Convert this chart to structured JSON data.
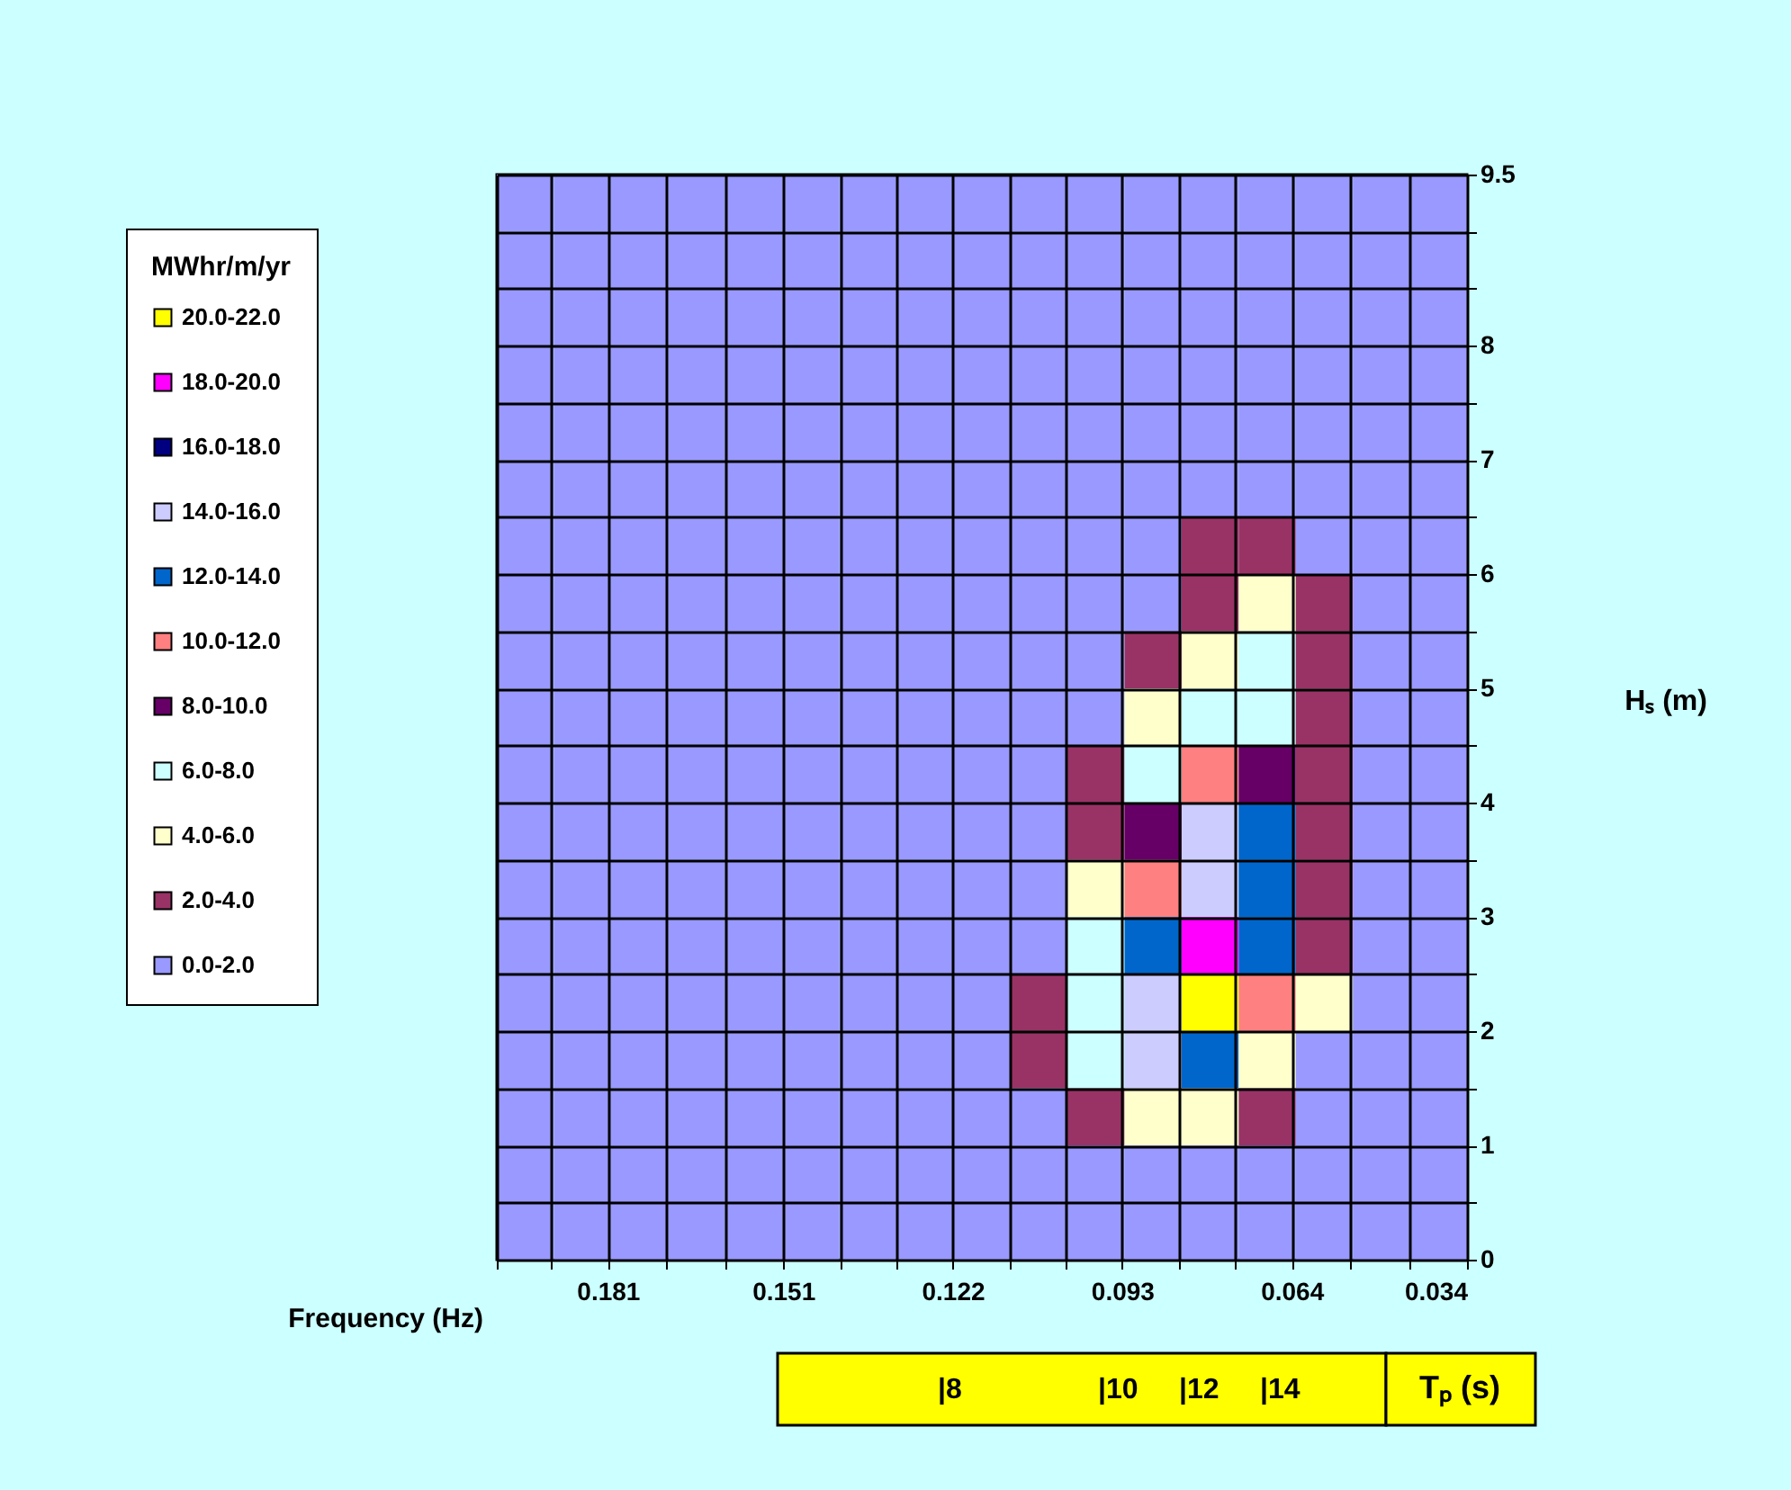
{
  "chart_data": {
    "type": "heatmap",
    "xlabel": "Frequency (Hz)",
    "ylabel": "Hₛ (m)",
    "x2label": "Tₚ (s)",
    "legend_title": "MWhr/m/yr",
    "grid": true,
    "xlim": [
      0.2,
      0.034
    ],
    "xticks": [
      {
        "value": 0.2,
        "label": null
      },
      {
        "value": 0.1907,
        "label": null
      },
      0.181,
      {
        "value": 0.171,
        "label": null
      },
      {
        "value": 0.161,
        "label": null
      },
      0.151,
      {
        "value": 0.1413,
        "label": null
      },
      {
        "value": 0.1317,
        "label": null
      },
      0.122,
      {
        "value": 0.1123,
        "label": null
      },
      {
        "value": 0.1027,
        "label": null
      },
      0.093,
      {
        "value": 0.0833,
        "label": null
      },
      {
        "value": 0.0737,
        "label": null
      },
      0.064,
      {
        "value": 0.054,
        "label": null
      },
      {
        "value": 0.044,
        "label": null
      },
      0.034
    ],
    "ylim": [
      0,
      9.5
    ],
    "yticks": [
      0,
      {
        "value": 0.5,
        "label": null
      },
      1,
      {
        "value": 1.5,
        "label": null
      },
      2,
      {
        "value": 2.5,
        "label": null
      },
      3,
      {
        "value": 3.5,
        "label": null
      },
      4,
      {
        "value": 4.5,
        "label": null
      },
      5,
      {
        "value": 5.5,
        "label": null
      },
      6,
      {
        "value": 6.5,
        "label": null
      },
      7,
      {
        "value": 7.5,
        "label": null
      },
      8,
      {
        "value": 8.5,
        "label": null
      },
      {
        "value": 9,
        "label": null
      },
      9.5
    ],
    "annotations": [
      "|8",
      "|10",
      "|12",
      "|14"
    ],
    "cticks": [
      {
        "value": 1,
        "label": "0.0-2.0"
      },
      {
        "value": 3,
        "label": "2.0-4.0"
      },
      {
        "value": 5,
        "label": "4.0-6.0"
      },
      {
        "value": 7,
        "label": "6.0-8.0"
      },
      {
        "value": 9,
        "label": "8.0-10.0"
      },
      {
        "value": 11,
        "label": "10.0-12.0"
      },
      {
        "value": 13,
        "label": "12.0-14.0"
      },
      {
        "value": 15,
        "label": "14.0-16.0"
      },
      {
        "value": 17,
        "label": "16.0-18.0"
      },
      {
        "value": 19,
        "label": "18.0-20.0"
      },
      {
        "value": 21,
        "label": "20.0-22.0"
      }
    ],
    "colors": [
      "#9999ff",
      "#993366",
      "#ffffcc",
      "#ccffff",
      "#660066",
      "#ff8080",
      "#0066cc",
      "#ccccff",
      "#000080",
      "#ff00ff",
      "#ffff00"
    ],
    "cells": [
      [
        1,
        1,
        1,
        1,
        1,
        1,
        1,
        1,
        1,
        1,
        1,
        1,
        1,
        1,
        1,
        1,
        1
      ],
      [
        1,
        1,
        1,
        1,
        1,
        1,
        1,
        1,
        1,
        1,
        1,
        1,
        1,
        1,
        1,
        1,
        1
      ],
      [
        1,
        1,
        1,
        1,
        1,
        1,
        1,
        1,
        1,
        1,
        1,
        1,
        1,
        1,
        1,
        1,
        1
      ],
      [
        1,
        1,
        1,
        1,
        1,
        1,
        1,
        1,
        1,
        1,
        1,
        1,
        1,
        1,
        1,
        1,
        1
      ],
      [
        1,
        1,
        1,
        1,
        1,
        1,
        1,
        1,
        1,
        1,
        1,
        1,
        1,
        1,
        1,
        1,
        1
      ],
      [
        1,
        1,
        1,
        1,
        1,
        1,
        1,
        1,
        1,
        1,
        1,
        1,
        1,
        1,
        1,
        1,
        1
      ],
      [
        1,
        1,
        1,
        1,
        1,
        1,
        1,
        1,
        1,
        1,
        1,
        1,
        3,
        3,
        1,
        1,
        1
      ],
      [
        1,
        1,
        1,
        1,
        1,
        1,
        1,
        1,
        1,
        1,
        1,
        1,
        3,
        5,
        3,
        1,
        1
      ],
      [
        1,
        1,
        1,
        1,
        1,
        1,
        1,
        1,
        1,
        1,
        1,
        3,
        5,
        7,
        3,
        1,
        1
      ],
      [
        1,
        1,
        1,
        1,
        1,
        1,
        1,
        1,
        1,
        1,
        1,
        5,
        7,
        7,
        3,
        1,
        1
      ],
      [
        1,
        1,
        1,
        1,
        1,
        1,
        1,
        1,
        1,
        1,
        3,
        7,
        11,
        9,
        3,
        1,
        1
      ],
      [
        1,
        1,
        1,
        1,
        1,
        1,
        1,
        1,
        1,
        1,
        3,
        9,
        15,
        13,
        3,
        1,
        1
      ],
      [
        1,
        1,
        1,
        1,
        1,
        1,
        1,
        1,
        1,
        1,
        5,
        11,
        15,
        13,
        3,
        1,
        1
      ],
      [
        1,
        1,
        1,
        1,
        1,
        1,
        1,
        1,
        1,
        1,
        7,
        13,
        19,
        13,
        3,
        1,
        1
      ],
      [
        1,
        1,
        1,
        1,
        1,
        1,
        1,
        1,
        1,
        3,
        7,
        15,
        21,
        11,
        5,
        1,
        1
      ],
      [
        1,
        1,
        1,
        1,
        1,
        1,
        1,
        1,
        1,
        3,
        7,
        15,
        13,
        5,
        1,
        1,
        1
      ],
      [
        1,
        1,
        1,
        1,
        1,
        1,
        1,
        1,
        1,
        1,
        3,
        5,
        5,
        3,
        1,
        1,
        1
      ],
      [
        1,
        1,
        1,
        1,
        1,
        1,
        1,
        1,
        1,
        1,
        1,
        1,
        1,
        1,
        1,
        1,
        1
      ],
      [
        1,
        1,
        1,
        1,
        1,
        1,
        1,
        1,
        1,
        1,
        1,
        1,
        1,
        1,
        1,
        1,
        1
      ]
    ]
  }
}
